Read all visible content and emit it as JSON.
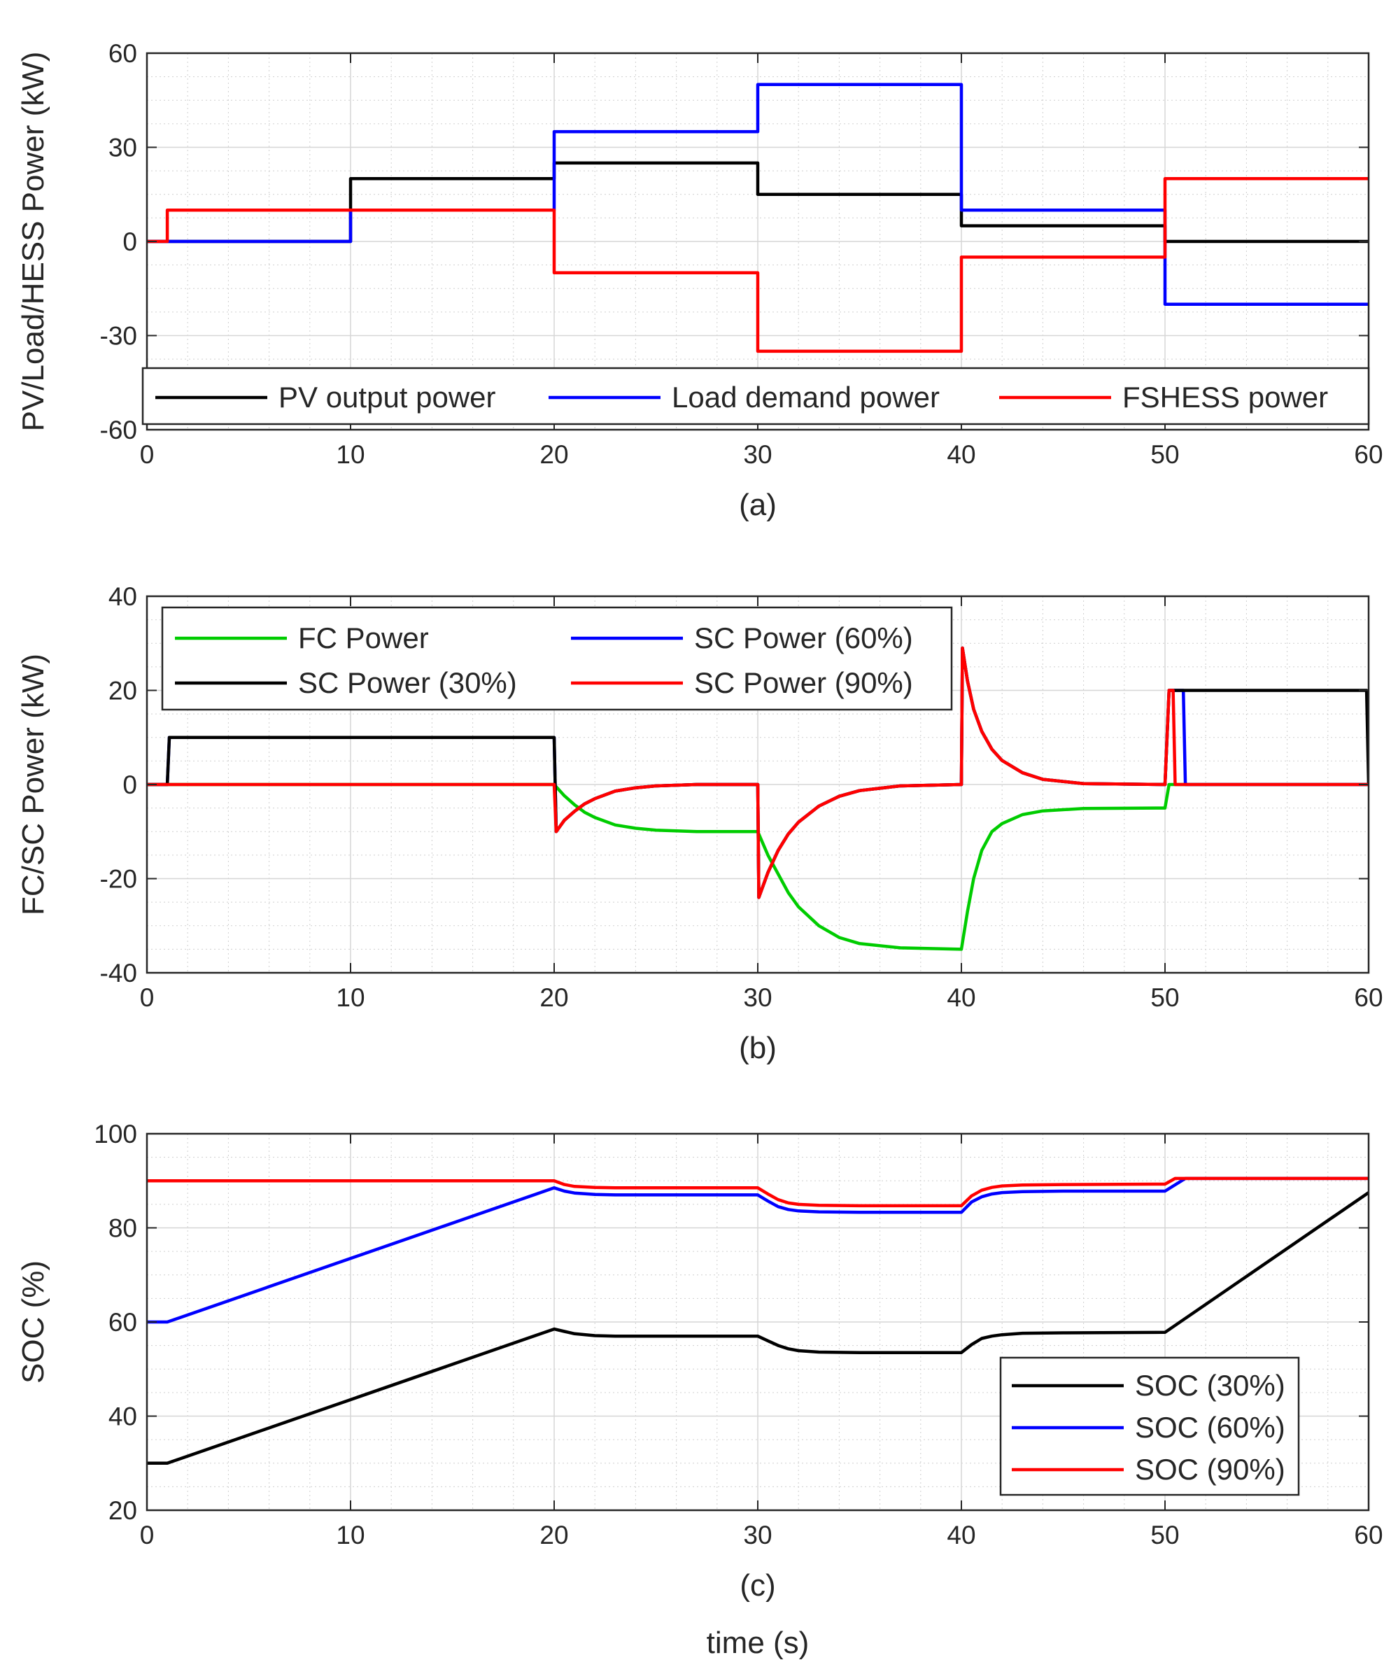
{
  "chart_data": [
    {
      "type": "line",
      "caption": "(a)",
      "xlabel": "",
      "ylabel": "PV/Load/HESS Power (kW)",
      "xlim": [
        0,
        60
      ],
      "ylim": [
        -60,
        60
      ],
      "xticks": [
        0,
        10,
        20,
        30,
        40,
        50,
        60
      ],
      "yticks": [
        -60,
        -30,
        0,
        30,
        60
      ],
      "grid": true,
      "minor_grid": true,
      "legend": {
        "placement": "bottom",
        "orientation": "horizontal"
      },
      "series": [
        {
          "name": "PV output power",
          "color": "#000000",
          "x": [
            0,
            10,
            10,
            20,
            20,
            30,
            30,
            40,
            40,
            50,
            50,
            60
          ],
          "y": [
            0,
            0,
            20,
            20,
            25,
            25,
            15,
            15,
            5,
            5,
            0,
            0
          ]
        },
        {
          "name": "Load demand power",
          "color": "#0000ff",
          "x": [
            0,
            10,
            10,
            20,
            20,
            30,
            30,
            40,
            40,
            50,
            50,
            60
          ],
          "y": [
            0,
            0,
            10,
            10,
            35,
            35,
            50,
            50,
            10,
            10,
            -20,
            -20
          ]
        },
        {
          "name": "FSHESS power",
          "color": "#ff0000",
          "x": [
            0,
            1,
            1,
            20,
            20,
            30,
            30,
            40,
            40,
            50,
            50,
            60
          ],
          "y": [
            0,
            0,
            10,
            10,
            -10,
            -10,
            -35,
            -35,
            -5,
            -5,
            20,
            20
          ]
        }
      ]
    },
    {
      "type": "line",
      "caption": "(b)",
      "xlabel": "",
      "ylabel": "FC/SC Power (kW)",
      "xlim": [
        0,
        60
      ],
      "ylim": [
        -40,
        40
      ],
      "xticks": [
        0,
        10,
        20,
        30,
        40,
        50,
        60
      ],
      "yticks": [
        -40,
        -20,
        0,
        20,
        40
      ],
      "grid": true,
      "minor_grid": true,
      "legend": {
        "placement": "top-left",
        "columns": 2
      },
      "series": [
        {
          "name": "FC Power",
          "color": "#00cc00",
          "x": [
            0,
            20,
            20.5,
            21,
            21.5,
            22,
            23,
            24,
            25,
            27,
            30,
            30.5,
            31,
            31.5,
            32,
            33,
            34,
            35,
            37,
            40,
            40.3,
            40.6,
            41,
            41.5,
            42,
            43,
            44,
            46,
            50,
            50.2,
            60
          ],
          "y": [
            0,
            0,
            -2.4,
            -4.3,
            -5.9,
            -7,
            -8.6,
            -9.3,
            -9.7,
            -10,
            -10,
            -15,
            -19,
            -23,
            -26,
            -30,
            -32.5,
            -33.8,
            -34.7,
            -35,
            -27,
            -20,
            -14,
            -10,
            -8.3,
            -6.4,
            -5.6,
            -5.1,
            -5,
            0,
            0
          ]
        },
        {
          "name": "SC Power (60%)",
          "color": "#0000ff",
          "x": [
            0,
            1,
            1.1,
            20,
            20.1,
            20.5,
            21,
            21.5,
            22,
            23,
            24,
            25,
            27,
            30,
            30.05,
            30.5,
            31,
            31.5,
            32,
            33,
            34,
            35,
            37,
            40,
            40.05,
            40.3,
            40.6,
            41,
            41.5,
            42,
            43,
            44,
            46,
            50,
            50.2,
            50.9,
            51,
            60
          ],
          "y": [
            0,
            0,
            10,
            10,
            -10,
            -7.6,
            -5.7,
            -4.1,
            -3,
            -1.4,
            -0.7,
            -0.3,
            0,
            0,
            -24,
            -18.7,
            -14,
            -10.5,
            -8,
            -4.6,
            -2.5,
            -1.3,
            -0.3,
            0,
            29,
            22,
            16,
            11.3,
            7.5,
            5.1,
            2.5,
            1.1,
            0.2,
            0,
            20,
            20,
            0,
            0
          ]
        },
        {
          "name": "SC Power (30%)",
          "color": "#000000",
          "x": [
            0,
            1,
            1.1,
            20,
            20.1,
            20.5,
            21,
            21.5,
            22,
            23,
            24,
            25,
            27,
            30,
            30.05,
            30.5,
            31,
            31.5,
            32,
            33,
            34,
            35,
            37,
            40,
            40.05,
            40.3,
            40.6,
            41,
            41.5,
            42,
            43,
            44,
            46,
            50,
            50.2,
            59.9,
            60
          ],
          "y": [
            0,
            0,
            10,
            10,
            -10,
            -7.6,
            -5.7,
            -4.1,
            -3,
            -1.4,
            -0.7,
            -0.3,
            0,
            0,
            -24,
            -18.7,
            -14,
            -10.5,
            -8,
            -4.6,
            -2.5,
            -1.3,
            -0.3,
            0,
            29,
            22,
            16,
            11.3,
            7.5,
            5.1,
            2.5,
            1.1,
            0.2,
            0,
            20,
            20,
            0
          ]
        },
        {
          "name": "SC Power (90%)",
          "color": "#ff0000",
          "x": [
            0,
            20,
            20.1,
            20.5,
            21,
            21.5,
            22,
            23,
            24,
            25,
            27,
            30,
            30.05,
            30.5,
            31,
            31.5,
            32,
            33,
            34,
            35,
            37,
            40,
            40.05,
            40.3,
            40.6,
            41,
            41.5,
            42,
            43,
            44,
            46,
            50,
            50.2,
            50.4,
            50.5,
            60
          ],
          "y": [
            0,
            0,
            -10,
            -7.6,
            -5.7,
            -4.1,
            -3,
            -1.4,
            -0.7,
            -0.3,
            0,
            0,
            -24,
            -18.7,
            -14,
            -10.5,
            -8,
            -4.6,
            -2.5,
            -1.3,
            -0.3,
            0,
            29,
            22,
            16,
            11.3,
            7.5,
            5.1,
            2.5,
            1.1,
            0.2,
            0,
            20,
            20,
            0,
            0
          ]
        }
      ]
    },
    {
      "type": "line",
      "caption": "(c)",
      "xlabel": "time (s)",
      "ylabel": "SOC (%)",
      "xlim": [
        0,
        60
      ],
      "ylim": [
        20,
        100
      ],
      "xticks": [
        0,
        10,
        20,
        30,
        40,
        50,
        60
      ],
      "yticks": [
        20,
        40,
        60,
        80,
        100
      ],
      "grid": true,
      "minor_grid": true,
      "legend": {
        "placement": "bottom-right",
        "columns": 1
      },
      "series": [
        {
          "name": "SOC (30%)",
          "color": "#000000",
          "x": [
            0,
            1,
            20,
            20.5,
            21,
            22,
            23,
            25,
            30,
            30.5,
            31,
            31.5,
            32,
            33,
            35,
            40,
            40.5,
            41,
            41.5,
            42,
            43,
            45,
            50,
            60
          ],
          "y": [
            30,
            30,
            58.5,
            58,
            57.5,
            57.1,
            57,
            57,
            57,
            56,
            55,
            54.3,
            53.9,
            53.6,
            53.5,
            53.5,
            55.2,
            56.5,
            57,
            57.3,
            57.6,
            57.7,
            57.8,
            87.5
          ]
        },
        {
          "name": "SOC (60%)",
          "color": "#0000ff",
          "x": [
            0,
            1,
            20,
            20.5,
            21,
            22,
            23,
            25,
            30,
            30.5,
            31,
            31.5,
            32,
            33,
            35,
            40,
            40.5,
            41,
            41.5,
            42,
            43,
            45,
            50,
            51,
            60
          ],
          "y": [
            60,
            60,
            88.5,
            87.8,
            87.4,
            87.1,
            87,
            87,
            87,
            85.7,
            84.5,
            83.9,
            83.6,
            83.4,
            83.3,
            83.3,
            85.5,
            86.6,
            87.2,
            87.5,
            87.7,
            87.8,
            87.8,
            90.5,
            90.5
          ]
        },
        {
          "name": "SOC (90%)",
          "color": "#ff0000",
          "x": [
            0,
            20,
            20.5,
            21,
            22,
            23,
            25,
            30,
            30.5,
            31,
            31.5,
            32,
            33,
            35,
            40,
            40.5,
            41,
            41.5,
            42,
            43,
            45,
            50,
            50.5,
            60
          ],
          "y": [
            90,
            90,
            89.2,
            88.8,
            88.6,
            88.5,
            88.5,
            88.5,
            87.2,
            86,
            85.3,
            85,
            84.8,
            84.7,
            84.7,
            86.8,
            88,
            88.6,
            88.9,
            89.1,
            89.2,
            89.3,
            90.5,
            90.5
          ]
        }
      ]
    }
  ]
}
